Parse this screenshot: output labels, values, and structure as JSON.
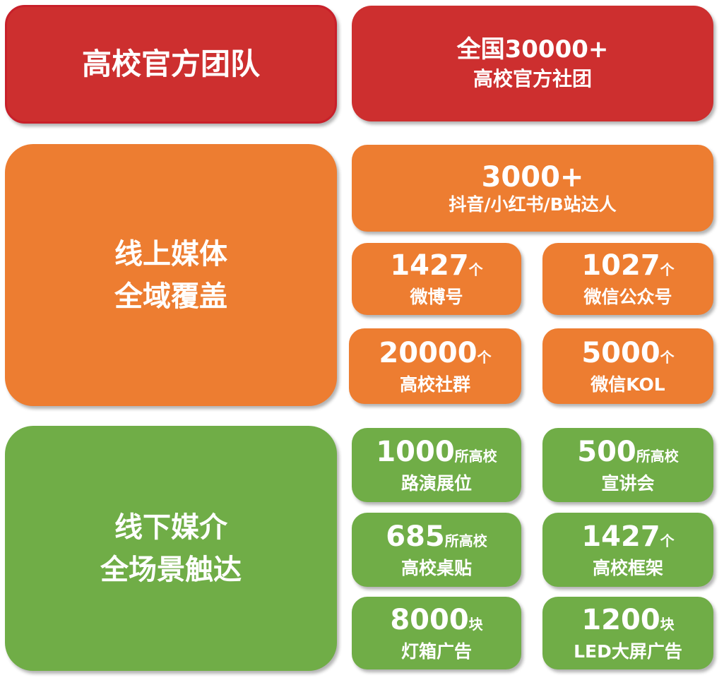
{
  "colors": {
    "red": "#cd2f2f",
    "orange": "#ed7d31",
    "green": "#70ad47"
  },
  "team": {
    "title": "高校官方团队",
    "stat_line1": "全国30000+",
    "stat_line2": "高校官方社团"
  },
  "online": {
    "title_line1": "线上媒体",
    "title_line2": "全域覆盖",
    "items": [
      {
        "num": "3000+",
        "unit": "",
        "label": "抖音/小红书/B站达人"
      },
      {
        "num": "1427",
        "unit": "个",
        "label": "微博号"
      },
      {
        "num": "1027",
        "unit": "个",
        "label": "微信公众号"
      },
      {
        "num": "20000",
        "unit": "个",
        "label": "高校社群"
      },
      {
        "num": "5000",
        "unit": "个",
        "label": "微信KOL"
      }
    ]
  },
  "offline": {
    "title_line1": "线下媒介",
    "title_line2": "全场景触达",
    "items": [
      {
        "num": "1000",
        "unit": "所高校",
        "label": "路演展位"
      },
      {
        "num": "500",
        "unit": "所高校",
        "label": "宣讲会"
      },
      {
        "num": "685",
        "unit": "所高校",
        "label": "高校桌贴"
      },
      {
        "num": "1427",
        "unit": "个",
        "label": "高校框架"
      },
      {
        "num": "8000",
        "unit": "块",
        "label": "灯箱广告"
      },
      {
        "num": "1200",
        "unit": "块",
        "label": "LED大屏广告"
      }
    ]
  }
}
